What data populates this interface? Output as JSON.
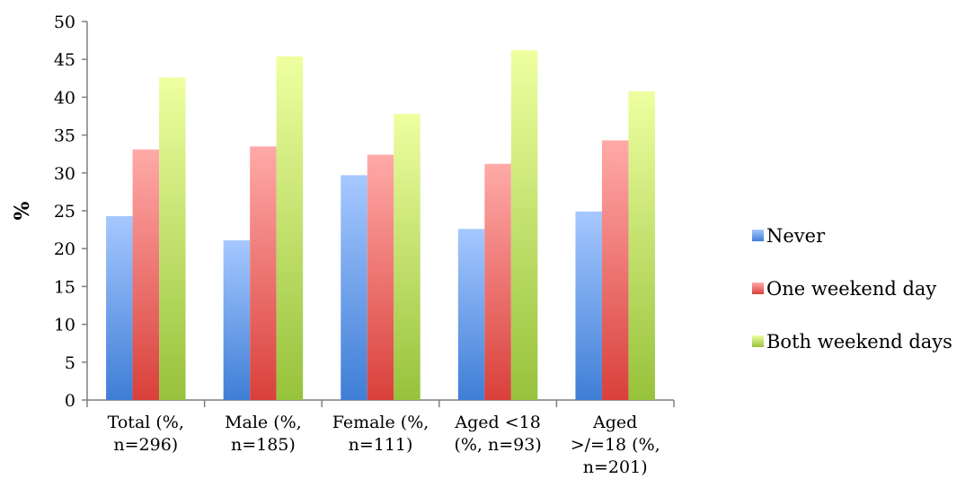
{
  "chart_data": {
    "type": "bar",
    "categories": [
      [
        "Total (%,",
        "n=296)"
      ],
      [
        "Male (%,",
        "n=185)"
      ],
      [
        "Female (%,",
        "n=111)"
      ],
      [
        "Aged <18",
        "(%, n=93)"
      ],
      [
        "Aged",
        ">/=18 (%,",
        "n=201)"
      ]
    ],
    "series": [
      {
        "name": "Never",
        "values": [
          24.3,
          21.1,
          29.7,
          22.6,
          24.9
        ]
      },
      {
        "name": "One weekend day",
        "values": [
          33.1,
          33.5,
          32.4,
          31.2,
          34.3
        ]
      },
      {
        "name": "Both weekend days",
        "values": [
          42.6,
          45.4,
          37.8,
          46.2,
          40.8
        ]
      }
    ],
    "ylabel": "%",
    "ylim": [
      0,
      50
    ],
    "yticks": [
      0,
      5,
      10,
      15,
      20,
      25,
      30,
      35,
      40,
      45,
      50
    ],
    "legend_position": "right",
    "colors": {
      "Never": {
        "light": "#a6c8ff",
        "dark": "#3f7ed6"
      },
      "One weekend day": {
        "light": "#ffaaa8",
        "dark": "#d9403b"
      },
      "Both weekend days": {
        "light": "#eeffa0",
        "dark": "#97c23c"
      }
    }
  }
}
